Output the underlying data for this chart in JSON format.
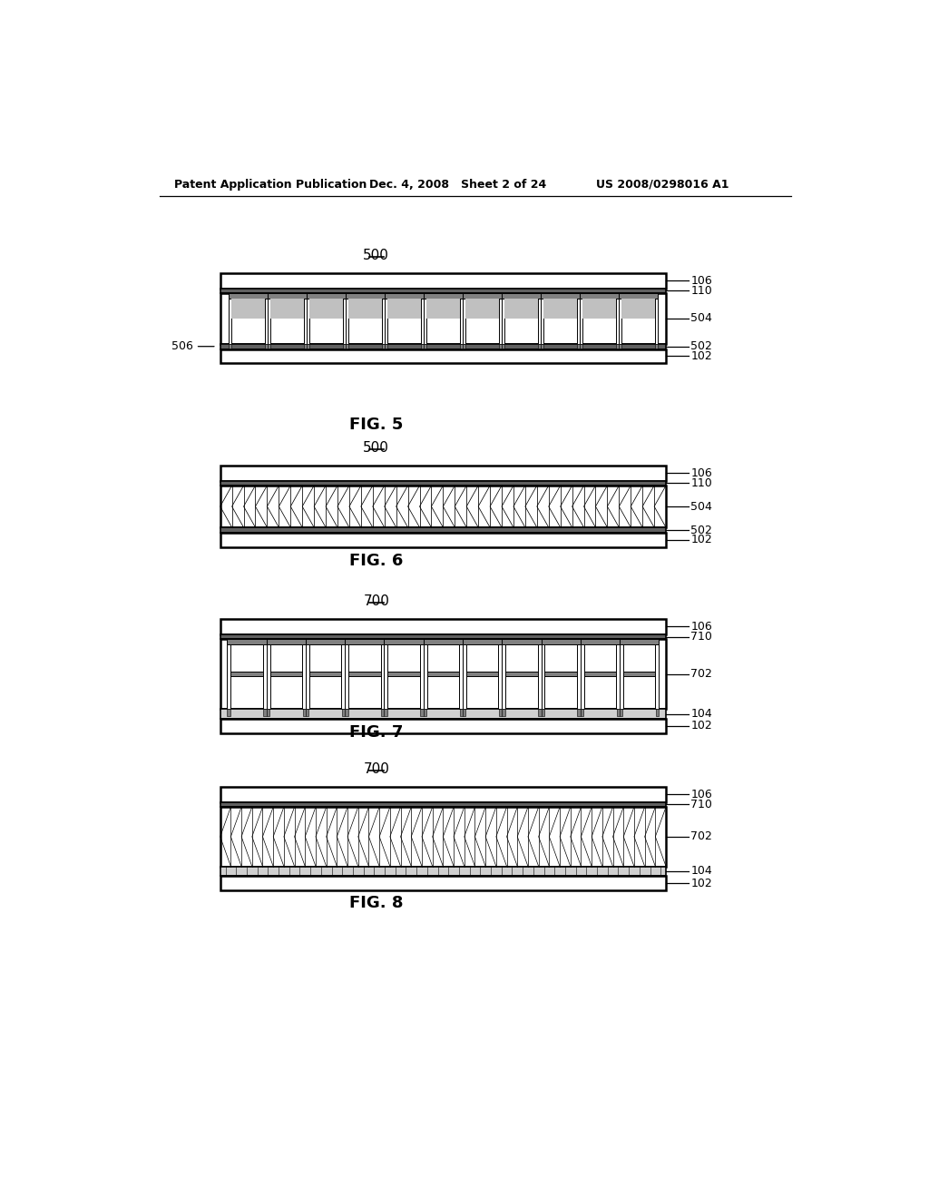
{
  "header_left": "Patent Application Publication",
  "header_mid": "Dec. 4, 2008   Sheet 2 of 24",
  "header_right": "US 2008/0298016 A1",
  "bg_color": "#ffffff",
  "line_color": "#000000",
  "fig5_refs": [
    "106",
    "110",
    "504",
    "502",
    "102"
  ],
  "fig5_left_ref": "506",
  "fig6_refs": [
    "106",
    "110",
    "504",
    "502",
    "102"
  ],
  "fig7_refs": [
    "106",
    "710",
    "702",
    "104",
    "102"
  ],
  "fig8_refs": [
    "106",
    "710",
    "702",
    "104",
    "102"
  ],
  "fig5_caption": "FIG. 5",
  "fig6_caption": "FIG. 6",
  "fig7_caption": "FIG. 7",
  "fig8_caption": "FIG. 8",
  "fig5_label": "500",
  "fig6_label": "500",
  "fig7_label": "700",
  "fig8_label": "700"
}
